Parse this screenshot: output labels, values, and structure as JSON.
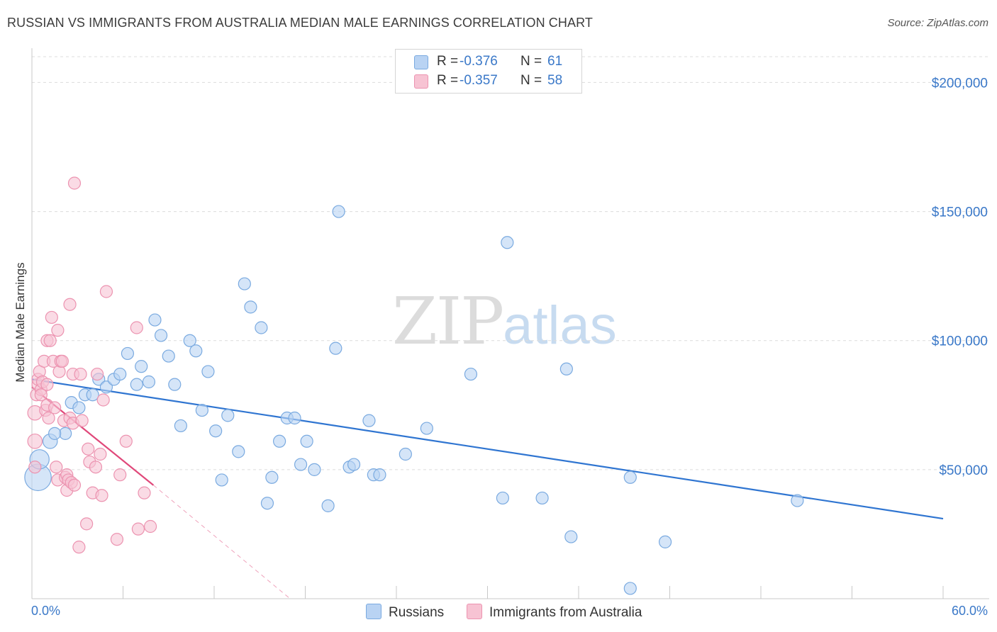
{
  "title": "RUSSIAN VS IMMIGRANTS FROM AUSTRALIA MEDIAN MALE EARNINGS CORRELATION CHART",
  "source": "Source: ZipAtlas.com",
  "watermark": {
    "zip": "ZIP",
    "atlas": "atlas"
  },
  "legend": {
    "rows": [
      {
        "r_label": "R =",
        "r_value": "-0.376",
        "n_label": "N =",
        "n_value": "61"
      },
      {
        "r_label": "R =",
        "r_value": "-0.357",
        "n_label": "N =",
        "n_value": "58"
      }
    ]
  },
  "bottom_legend": {
    "russians": "Russians",
    "australia": "Immigrants from Australia"
  },
  "colors": {
    "blue_fill": "#b9d3f3",
    "blue_stroke": "#7aaae0",
    "blue_line": "#2f75d1",
    "pink_fill": "#f7c3d3",
    "pink_stroke": "#ec93b0",
    "pink_line": "#e0487a",
    "tick_text": "#3a78c8",
    "grid": "#dcdcdc"
  },
  "chart_data": {
    "type": "scatter",
    "title": "RUSSIAN VS IMMIGRANTS FROM AUSTRALIA MEDIAN MALE EARNINGS CORRELATION CHART",
    "xlabel": "",
    "ylabel": "Median Male Earnings",
    "xlim": [
      0,
      60
    ],
    "ylim": [
      0,
      210000
    ],
    "x_tick_labels": [
      "0.0%",
      "60.0%"
    ],
    "y_ticks": [
      {
        "value": 50000,
        "label": "$50,000"
      },
      {
        "value": 100000,
        "label": "$100,000"
      },
      {
        "value": 150000,
        "label": "$150,000"
      },
      {
        "value": 200000,
        "label": "$200,000"
      }
    ],
    "series": [
      {
        "name": "Russians",
        "r": -0.376,
        "n": 61,
        "trend": {
          "x": [
            0,
            60
          ],
          "y": [
            85000,
            31000
          ],
          "style": "solid"
        },
        "points": [
          [
            0.4,
            47000,
            2.2
          ],
          [
            0.5,
            54000,
            1.6
          ],
          [
            1.2,
            61000,
            1.2
          ],
          [
            2.2,
            64000,
            1.0
          ],
          [
            1.5,
            64000,
            1.0
          ],
          [
            2.6,
            76000,
            1.0
          ],
          [
            3.1,
            74000,
            1.0
          ],
          [
            3.5,
            79000,
            1.0
          ],
          [
            4.0,
            79000,
            1.0
          ],
          [
            4.4,
            85000,
            1.0
          ],
          [
            4.9,
            82000,
            1.0
          ],
          [
            5.4,
            85000,
            1.0
          ],
          [
            5.8,
            87000,
            1.0
          ],
          [
            6.3,
            95000,
            1.0
          ],
          [
            6.9,
            83000,
            1.0
          ],
          [
            7.2,
            90000,
            1.0
          ],
          [
            7.7,
            84000,
            1.0
          ],
          [
            8.1,
            108000,
            1.0
          ],
          [
            8.5,
            102000,
            1.0
          ],
          [
            9.0,
            94000,
            1.0
          ],
          [
            9.4,
            83000,
            1.0
          ],
          [
            9.8,
            67000,
            1.0
          ],
          [
            10.4,
            100000,
            1.0
          ],
          [
            10.8,
            96000,
            1.0
          ],
          [
            11.2,
            73000,
            1.0
          ],
          [
            11.6,
            88000,
            1.0
          ],
          [
            12.1,
            65000,
            1.0
          ],
          [
            12.5,
            46000,
            1.0
          ],
          [
            12.9,
            71000,
            1.0
          ],
          [
            13.6,
            57000,
            1.0
          ],
          [
            14.0,
            122000,
            1.0
          ],
          [
            14.4,
            113000,
            1.0
          ],
          [
            15.1,
            105000,
            1.0
          ],
          [
            15.5,
            37000,
            1.0
          ],
          [
            15.8,
            47000,
            1.0
          ],
          [
            16.3,
            61000,
            1.0
          ],
          [
            16.8,
            70000,
            1.0
          ],
          [
            17.3,
            70000,
            1.0
          ],
          [
            17.7,
            52000,
            1.0
          ],
          [
            18.1,
            61000,
            1.0
          ],
          [
            18.6,
            50000,
            1.0
          ],
          [
            19.5,
            36000,
            1.0
          ],
          [
            20.0,
            97000,
            1.0
          ],
          [
            20.2,
            150000,
            1.0
          ],
          [
            20.9,
            51000,
            1.0
          ],
          [
            21.2,
            52000,
            1.0
          ],
          [
            22.2,
            69000,
            1.0
          ],
          [
            22.5,
            48000,
            1.0
          ],
          [
            22.9,
            48000,
            1.0
          ],
          [
            24.6,
            56000,
            1.0
          ],
          [
            26.0,
            66000,
            1.0
          ],
          [
            28.9,
            87000,
            1.0
          ],
          [
            31.0,
            39000,
            1.0
          ],
          [
            31.3,
            138000,
            1.0
          ],
          [
            33.6,
            39000,
            1.0
          ],
          [
            35.2,
            89000,
            1.0
          ],
          [
            35.5,
            24000,
            1.0
          ],
          [
            39.4,
            47000,
            1.0
          ],
          [
            39.4,
            4000,
            1.0
          ],
          [
            41.7,
            22000,
            1.0
          ],
          [
            50.4,
            38000,
            1.0
          ]
        ]
      },
      {
        "name": "Immigrants from Australia",
        "r": -0.357,
        "n": 58,
        "trend": {
          "x": [
            0,
            8
          ],
          "y": [
            82000,
            44000
          ],
          "style": "solid",
          "extension": {
            "x": [
              8,
              17
            ],
            "y": [
              44000,
              0
            ],
            "style": "dashed"
          }
        },
        "points": [
          [
            0.2,
            61000,
            1.2
          ],
          [
            0.2,
            72000,
            1.2
          ],
          [
            0.2,
            51000,
            1.0
          ],
          [
            0.3,
            79000,
            1.0
          ],
          [
            0.4,
            83000,
            1.0
          ],
          [
            0.4,
            85000,
            1.0
          ],
          [
            0.5,
            88000,
            1.0
          ],
          [
            0.6,
            81000,
            1.0
          ],
          [
            0.7,
            84000,
            1.0
          ],
          [
            0.8,
            92000,
            1.0
          ],
          [
            0.9,
            73000,
            1.0
          ],
          [
            1.0,
            75000,
            1.0
          ],
          [
            1.0,
            100000,
            1.0
          ],
          [
            1.1,
            70000,
            1.0
          ],
          [
            1.2,
            100000,
            1.0
          ],
          [
            1.3,
            109000,
            1.0
          ],
          [
            1.4,
            92000,
            1.0
          ],
          [
            1.5,
            74000,
            1.0
          ],
          [
            1.6,
            51000,
            1.0
          ],
          [
            1.7,
            104000,
            1.0
          ],
          [
            1.7,
            46000,
            1.0
          ],
          [
            1.8,
            88000,
            1.0
          ],
          [
            1.9,
            92000,
            1.0
          ],
          [
            2.0,
            92000,
            1.0
          ],
          [
            2.1,
            69000,
            1.0
          ],
          [
            2.2,
            47000,
            1.0
          ],
          [
            2.3,
            42000,
            1.0
          ],
          [
            2.3,
            48000,
            1.0
          ],
          [
            2.4,
            46000,
            1.0
          ],
          [
            2.5,
            114000,
            1.0
          ],
          [
            2.5,
            70000,
            1.0
          ],
          [
            2.6,
            45000,
            1.0
          ],
          [
            2.7,
            68000,
            1.0
          ],
          [
            2.7,
            87000,
            1.0
          ],
          [
            2.8,
            44000,
            1.0
          ],
          [
            2.8,
            161000,
            1.0
          ],
          [
            3.1,
            20000,
            1.0
          ],
          [
            3.2,
            87000,
            1.0
          ],
          [
            3.3,
            69000,
            1.0
          ],
          [
            3.6,
            29000,
            1.0
          ],
          [
            3.7,
            58000,
            1.0
          ],
          [
            3.8,
            53000,
            1.0
          ],
          [
            4.0,
            41000,
            1.0
          ],
          [
            4.2,
            51000,
            1.0
          ],
          [
            4.3,
            87000,
            1.0
          ],
          [
            4.5,
            56000,
            1.0
          ],
          [
            4.6,
            40000,
            1.0
          ],
          [
            4.7,
            77000,
            1.0
          ],
          [
            4.9,
            119000,
            1.0
          ],
          [
            5.6,
            23000,
            1.0
          ],
          [
            5.8,
            48000,
            1.0
          ],
          [
            6.2,
            61000,
            1.0
          ],
          [
            6.9,
            105000,
            1.0
          ],
          [
            7.0,
            27000,
            1.0
          ],
          [
            7.4,
            41000,
            1.0
          ],
          [
            7.8,
            28000,
            1.0
          ],
          [
            1.0,
            83000,
            1.0
          ],
          [
            0.6,
            79000,
            1.0
          ]
        ]
      }
    ],
    "grid": true,
    "legend_position": "top-center"
  }
}
